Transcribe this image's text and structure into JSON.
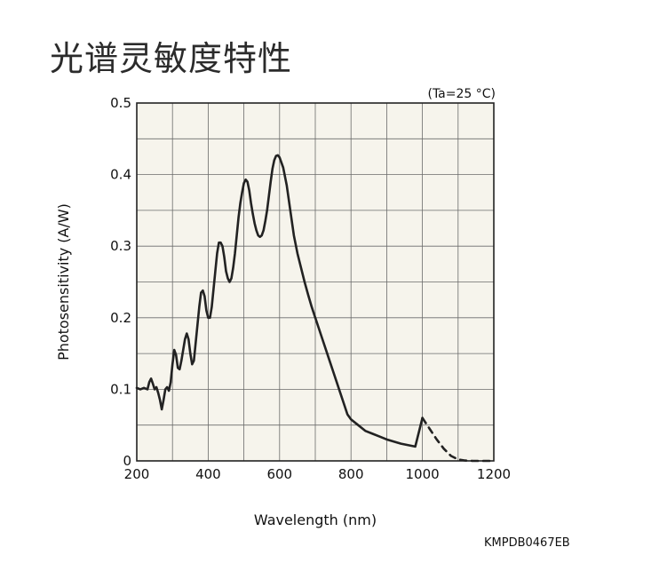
{
  "title": "光谱灵敏度特性",
  "figure_code": "KMPDB0467EB",
  "chart_data": {
    "type": "line",
    "title": "光谱灵敏度特性",
    "annotation": "(Ta=25 °C)",
    "xlabel": "Wavelength (nm)",
    "ylabel": "Photosensitivity (A/W)",
    "xlim": [
      200,
      1200
    ],
    "ylim": [
      0,
      0.5
    ],
    "x_ticks": [
      200,
      400,
      600,
      800,
      1000,
      1200
    ],
    "y_ticks": [
      0,
      0.1,
      0.2,
      0.3,
      0.4,
      0.5
    ],
    "y_tick_labels": [
      "0",
      "0.1",
      "0.2",
      "0.3",
      "0.4",
      "0.5"
    ],
    "x_grid_step": 100,
    "y_grid_step": 0.05,
    "grid": true,
    "background": "#f6f4ec",
    "line_color": "#222222",
    "series": [
      {
        "style": "solid",
        "x": [
          200,
          210,
          220,
          230,
          235,
          240,
          245,
          250,
          255,
          260,
          265,
          270,
          275,
          280,
          285,
          290,
          295,
          300,
          305,
          310,
          315,
          320,
          325,
          330,
          335,
          340,
          345,
          350,
          355,
          360,
          365,
          370,
          375,
          380,
          385,
          390,
          395,
          400,
          405,
          410,
          415,
          420,
          425,
          430,
          435,
          440,
          445,
          450,
          455,
          460,
          465,
          470,
          475,
          480,
          485,
          490,
          495,
          500,
          505,
          510,
          515,
          520,
          525,
          530,
          535,
          540,
          545,
          550,
          555,
          560,
          565,
          570,
          575,
          580,
          585,
          590,
          595,
          600,
          610,
          620,
          630,
          640,
          650,
          660,
          670,
          680,
          690,
          700,
          710,
          720,
          730,
          740,
          750,
          760,
          770,
          780,
          790,
          800,
          820,
          840,
          860,
          880,
          900,
          920,
          940,
          960,
          980,
          1000
        ],
        "y": [
          0.102,
          0.1,
          0.102,
          0.1,
          0.11,
          0.115,
          0.108,
          0.1,
          0.103,
          0.095,
          0.085,
          0.072,
          0.085,
          0.1,
          0.103,
          0.098,
          0.11,
          0.135,
          0.155,
          0.148,
          0.13,
          0.128,
          0.14,
          0.155,
          0.17,
          0.178,
          0.17,
          0.15,
          0.135,
          0.14,
          0.165,
          0.19,
          0.215,
          0.235,
          0.238,
          0.23,
          0.21,
          0.2,
          0.2,
          0.215,
          0.24,
          0.265,
          0.29,
          0.305,
          0.305,
          0.3,
          0.285,
          0.265,
          0.255,
          0.25,
          0.255,
          0.27,
          0.29,
          0.315,
          0.34,
          0.36,
          0.375,
          0.388,
          0.393,
          0.39,
          0.378,
          0.36,
          0.345,
          0.332,
          0.322,
          0.315,
          0.313,
          0.315,
          0.322,
          0.335,
          0.35,
          0.37,
          0.39,
          0.408,
          0.42,
          0.426,
          0.427,
          0.424,
          0.41,
          0.385,
          0.35,
          0.315,
          0.29,
          0.27,
          0.25,
          0.232,
          0.215,
          0.2,
          0.185,
          0.17,
          0.155,
          0.14,
          0.125,
          0.11,
          0.095,
          0.08,
          0.065,
          0.058,
          0.05,
          0.042,
          0.038,
          0.034,
          0.03,
          0.027,
          0.024,
          0.022,
          0.02,
          0.06
        ]
      },
      {
        "style": "dashed",
        "x": [
          1000,
          1020,
          1040,
          1060,
          1080,
          1100,
          1120,
          1140,
          1160,
          1180,
          1200
        ],
        "y": [
          0.06,
          0.045,
          0.03,
          0.017,
          0.007,
          0.002,
          0.0005,
          0,
          0,
          0,
          0
        ]
      }
    ]
  }
}
